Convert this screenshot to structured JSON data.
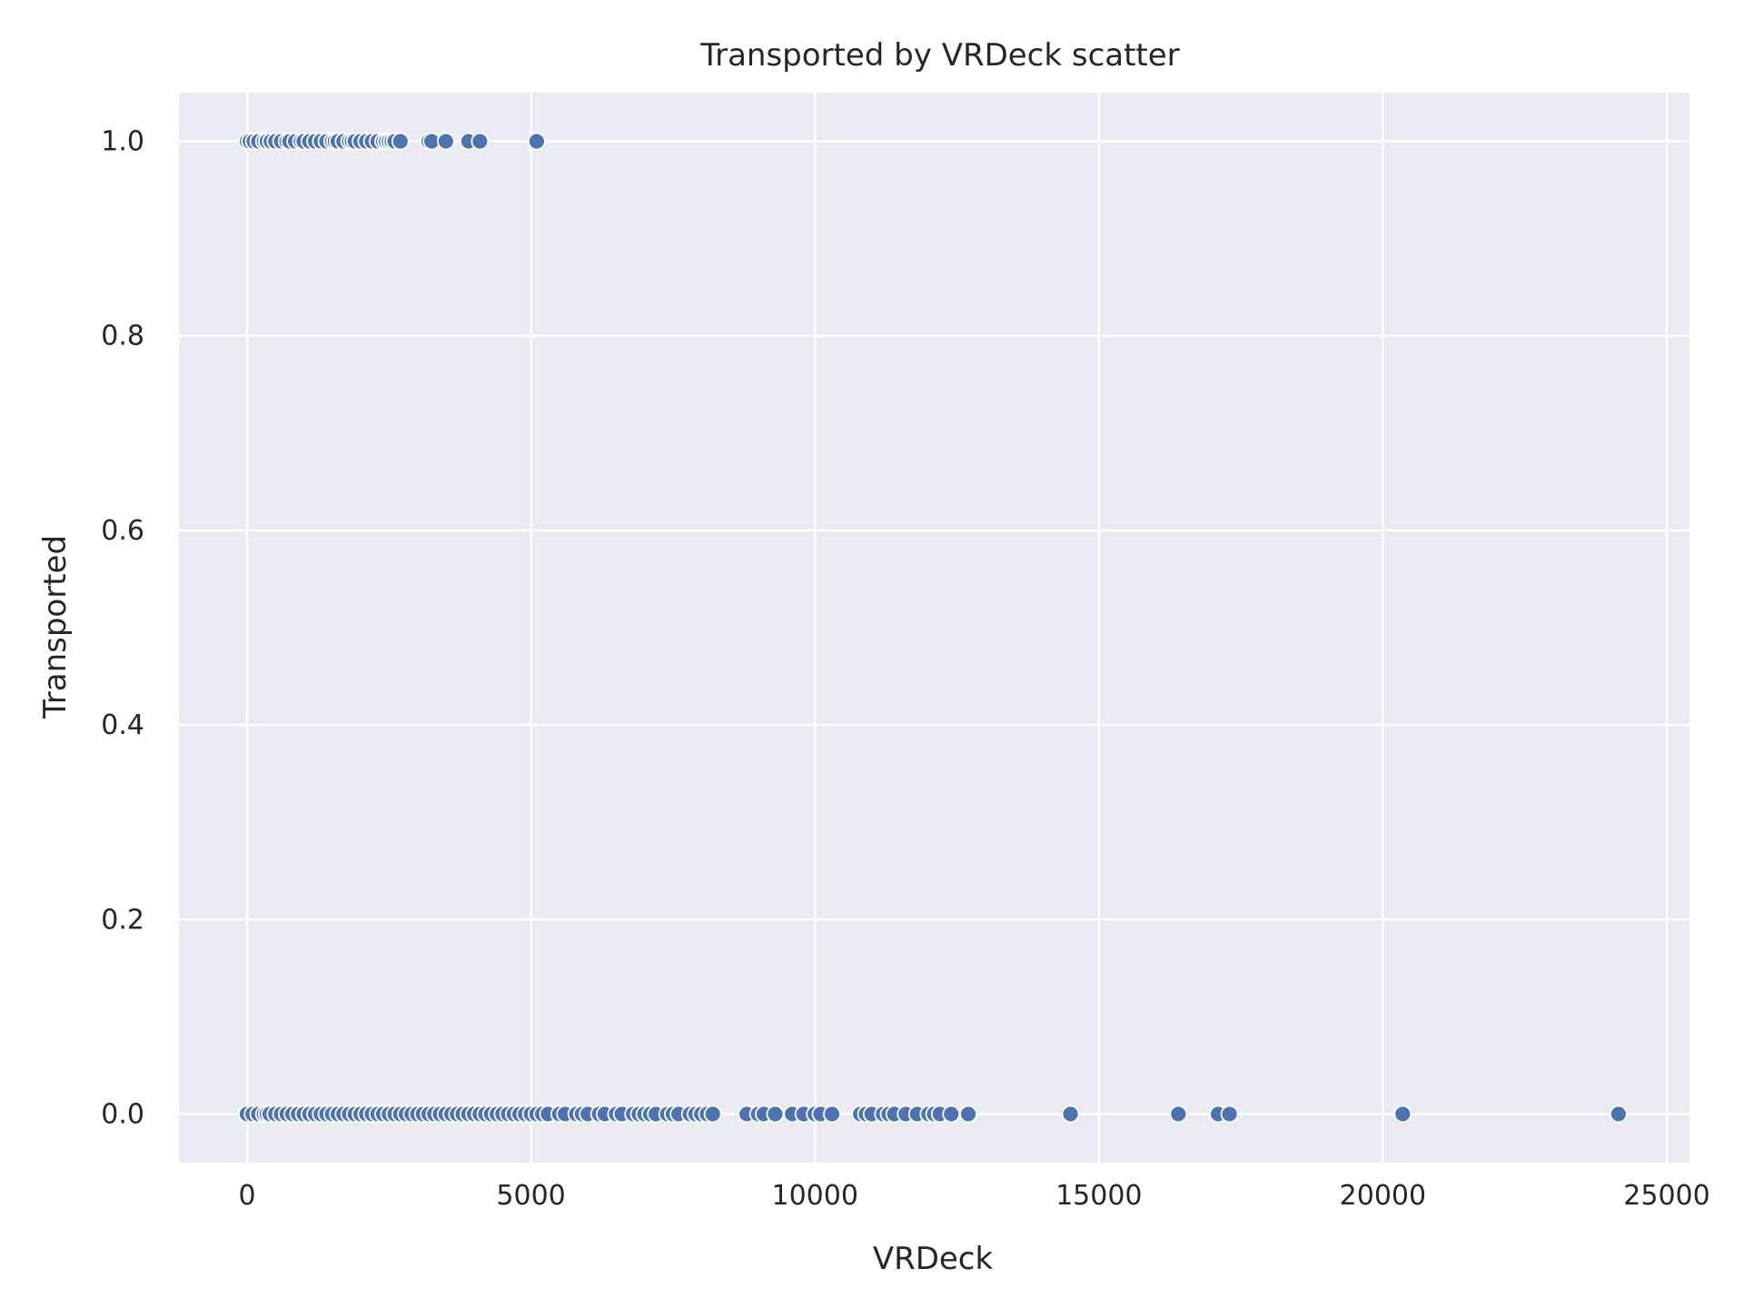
{
  "chart_data": {
    "type": "scatter",
    "title": "Transported by VRDeck scatter",
    "xlabel": "VRDeck",
    "ylabel": "Transported",
    "xlim": [
      -1200,
      25400
    ],
    "ylim": [
      -0.05,
      1.05
    ],
    "x_ticks": [
      0,
      5000,
      10000,
      15000,
      20000,
      25000
    ],
    "x_tick_labels": [
      "0",
      "5000",
      "10000",
      "15000",
      "20000",
      "25000"
    ],
    "y_ticks": [
      0.0,
      0.2,
      0.4,
      0.6,
      0.8,
      1.0
    ],
    "y_tick_labels": [
      "0.0",
      "0.2",
      "0.4",
      "0.6",
      "0.8",
      "1.0"
    ],
    "grid": true,
    "colors": {
      "background": "#eaeaf2",
      "point": "#4c72b0",
      "grid": "#ffffff"
    },
    "series": [
      {
        "y": 1,
        "x": [
          0,
          50,
          120,
          200,
          300,
          350,
          420,
          500,
          600,
          700,
          750,
          850,
          950,
          1000,
          1100,
          1200,
          1300,
          1400,
          1500,
          1550,
          1600,
          1700,
          1800,
          1850,
          1900,
          2000,
          2100,
          2200,
          2300,
          2400,
          2450,
          2500,
          2550,
          2600,
          2700,
          3200,
          3250,
          3500,
          3900,
          4100,
          5100
        ]
      },
      {
        "y": 0,
        "x": [
          0,
          100,
          200,
          300,
          350,
          400,
          500,
          600,
          700,
          800,
          900,
          1000,
          1100,
          1200,
          1300,
          1400,
          1500,
          1600,
          1700,
          1800,
          1900,
          2000,
          2100,
          2200,
          2300,
          2400,
          2500,
          2600,
          2700,
          2800,
          2900,
          3000,
          3100,
          3200,
          3300,
          3400,
          3500,
          3600,
          3700,
          3800,
          3900,
          4000,
          4100,
          4200,
          4300,
          4400,
          4500,
          4600,
          4700,
          4800,
          4900,
          5000,
          5100,
          5200,
          5300,
          5500,
          5600,
          5800,
          5900,
          6000,
          6200,
          6300,
          6500,
          6600,
          6800,
          6900,
          7000,
          7100,
          7200,
          7400,
          7500,
          7600,
          7800,
          7900,
          8000,
          8100,
          8200,
          8800,
          9000,
          9100,
          9300,
          9600,
          9800,
          10000,
          10100,
          10300,
          10800,
          10900,
          11000,
          11200,
          11300,
          11400,
          11600,
          11800,
          12000,
          12100,
          12200,
          12400,
          12700,
          14500,
          16400,
          17100,
          17300,
          20350,
          24150
        ]
      }
    ]
  }
}
